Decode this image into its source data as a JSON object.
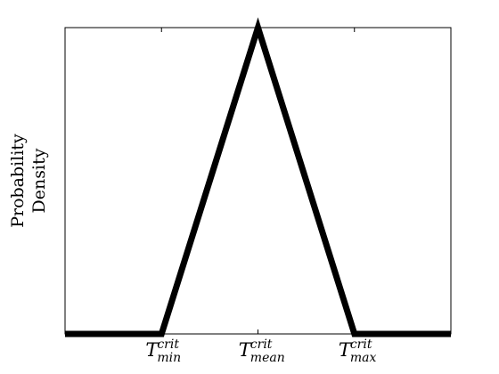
{
  "chart_data": {
    "type": "line",
    "title": "",
    "xlabel": "",
    "ylabel_lines": [
      "Probability",
      "Density"
    ],
    "x_ticks": [
      {
        "value": 1,
        "base": "T",
        "sup": "crit",
        "sub": "min"
      },
      {
        "value": 2,
        "base": "T",
        "sup": "crit",
        "sub": "mean"
      },
      {
        "value": 3,
        "base": "T",
        "sup": "crit",
        "sub": "max"
      }
    ],
    "xlim": [
      0,
      4
    ],
    "ylim": [
      0,
      1
    ],
    "series": [
      {
        "x": [
          0,
          1,
          2,
          3,
          4
        ],
        "y": [
          0,
          0,
          1,
          0,
          0
        ],
        "color": "#000000"
      }
    ],
    "y_ticks_labeled": false,
    "grid": false,
    "legend": "none"
  }
}
